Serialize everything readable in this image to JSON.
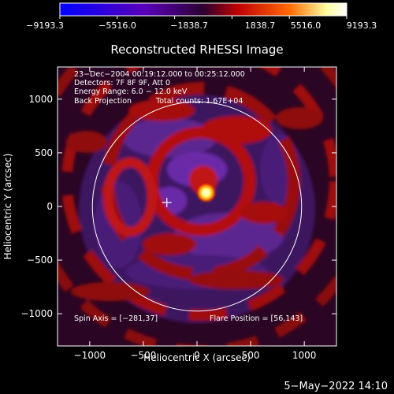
{
  "chart_data": {
    "type": "heatmap",
    "title": "Reconstructed RHESSI Image",
    "xlabel": "Heliocentric X (arcsec)",
    "ylabel": "Heliocentric Y (arcsec)",
    "xlim": [
      -1300,
      1300
    ],
    "ylim": [
      -1300,
      1300
    ],
    "xticks": [
      -1000,
      -500,
      0,
      500,
      1000
    ],
    "xtick_labels": [
      "−1000",
      "−500",
      "0",
      "500",
      "1000"
    ],
    "yticks": [
      -1000,
      -500,
      0,
      500,
      1000
    ],
    "ytick_labels": [
      "−1000",
      "−500",
      "0",
      "500",
      "1000"
    ],
    "colorbar": {
      "min": -9193.3,
      "max": 9193.3,
      "ticks": [
        -9193.3,
        -5516.0,
        -1838.7,
        1838.7,
        5516.0,
        9193.3
      ],
      "tick_labels": [
        "−9193.3",
        "−5516.0",
        "−1838.7",
        "1838.7",
        "5516.0",
        "9193.3"
      ],
      "colors": [
        "#0000ff",
        "#5a00b8",
        "#2a0030",
        "#c00000",
        "#ff6a00",
        "#ffffa0",
        "#ffffff"
      ]
    },
    "annotations": {
      "time_range": "23−Dec−2004 00:19:12.000 to 00:25:12.000",
      "detectors": "Detectors: 7F 8F 9F, Att 0",
      "energy": "Energy Range: 6.0 − 12.0 keV",
      "method": "Back Projection",
      "counts": "Total counts: 1.67E+04",
      "spin_axis": "Spin Axis = [−281,37]",
      "flare_position": "Flare Position = [56,143]"
    },
    "solar_disk_radius_arcsec": 975,
    "spin_axis": [
      -281,
      37
    ],
    "flare_position": [
      56,
      143
    ],
    "peak_source": {
      "x": 56,
      "y": 143,
      "value": 9193.3
    },
    "grid": false
  },
  "footer": {
    "date_stamp": "5−May−2022 14:10"
  }
}
